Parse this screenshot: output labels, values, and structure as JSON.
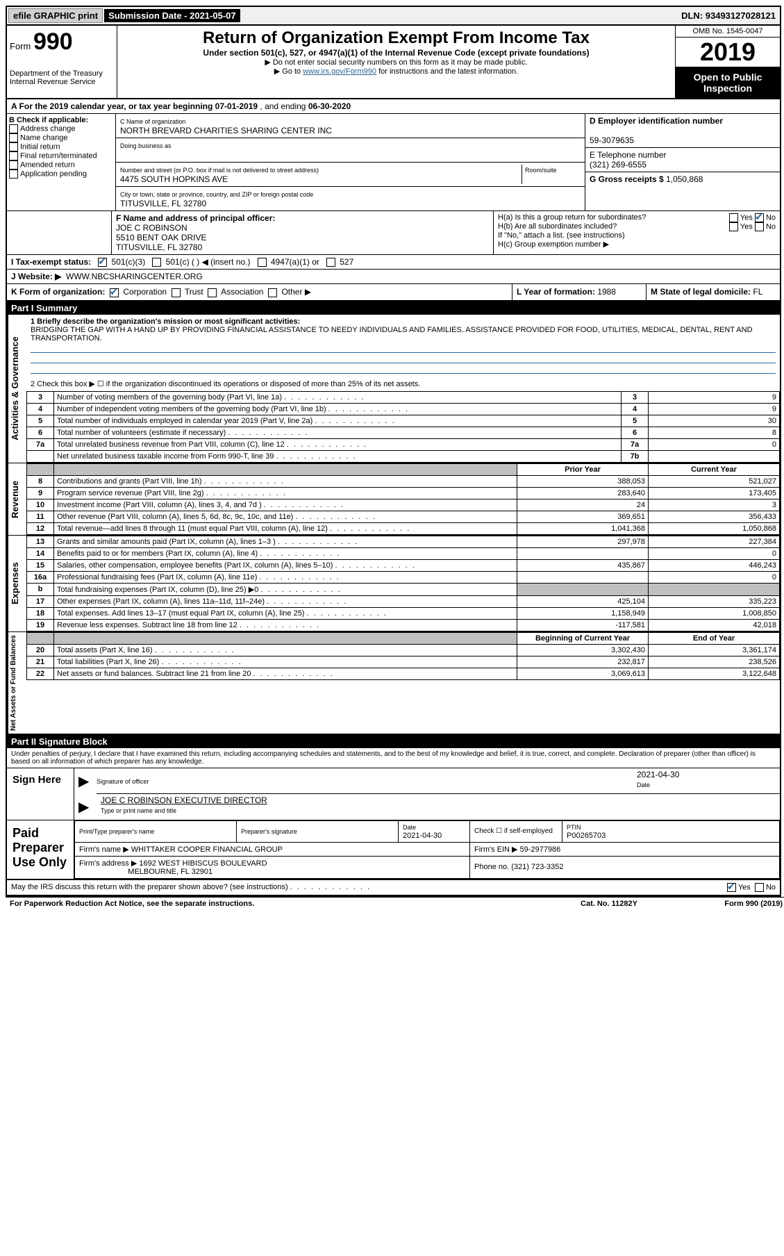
{
  "topbar": {
    "efile": "efile GRAPHIC print",
    "submission_label": "Submission Date",
    "submission_date": "2021-05-07",
    "dln_label": "DLN:",
    "dln": "93493127028121"
  },
  "header": {
    "form_label": "Form",
    "form_number": "990",
    "dept1": "Department of the Treasury",
    "dept2": "Internal Revenue Service",
    "title": "Return of Organization Exempt From Income Tax",
    "subtitle": "Under section 501(c), 527, or 4947(a)(1) of the Internal Revenue Code (except private foundations)",
    "note1": "▶ Do not enter social security numbers on this form as it may be made public.",
    "note2_pre": "▶ Go to ",
    "note2_link": "www.irs.gov/Form990",
    "note2_post": " for instructions and the latest information.",
    "omb": "OMB No. 1545-0047",
    "year": "2019",
    "open_public": "Open to Public Inspection"
  },
  "sectionA": {
    "text_pre": "A For the 2019 calendar year, or tax year beginning ",
    "begin": "07-01-2019",
    "mid": " , and ending ",
    "end": "06-30-2020"
  },
  "boxB": {
    "label": "B Check if applicable:",
    "items": [
      "Address change",
      "Name change",
      "Initial return",
      "Final return/terminated",
      "Amended return",
      "Application pending"
    ]
  },
  "boxC": {
    "name_label": "C Name of organization",
    "name": "NORTH BREVARD CHARITIES SHARING CENTER INC",
    "dba_label": "Doing business as",
    "dba": "",
    "street_label": "Number and street (or P.O. box if mail is not delivered to street address)",
    "room_label": "Room/suite",
    "street": "4475 SOUTH HOPKINS AVE",
    "city_label": "City or town, state or province, country, and ZIP or foreign postal code",
    "city": "TITUSVILLE, FL  32780"
  },
  "boxD": {
    "label": "D Employer identification number",
    "ein": "59-3079635"
  },
  "boxE": {
    "label": "E Telephone number",
    "phone": "(321) 269-6555"
  },
  "boxG": {
    "label": "G Gross receipts $",
    "val": "1,050,868"
  },
  "boxF": {
    "label": "F Name and address of principal officer:",
    "name": "JOE C ROBINSON",
    "addr1": "5510 BENT OAK DRIVE",
    "addr2": "TITUSVILLE, FL  32780"
  },
  "boxH": {
    "a_label": "H(a) Is this a group return for subordinates?",
    "a_yes": "Yes",
    "a_no": "No",
    "b_label": "H(b) Are all subordinates included?",
    "b_yes": "Yes",
    "b_no": "No",
    "b_note": "If \"No,\" attach a list. (see instructions)",
    "c_label": "H(c) Group exemption number ▶",
    "c_val": ""
  },
  "boxI": {
    "label": "I Tax-exempt status:",
    "opt1": "501(c)(3)",
    "opt2": "501(c) (   ) ◀ (insert no.)",
    "opt3": "4947(a)(1) or",
    "opt4": "527"
  },
  "boxJ": {
    "label": "J Website: ▶",
    "val": "WWW.NBCSHARINGCENTER.ORG"
  },
  "boxK": {
    "label": "K Form of organization:",
    "opt1": "Corporation",
    "opt2": "Trust",
    "opt3": "Association",
    "opt4": "Other ▶"
  },
  "boxL": {
    "label": "L Year of formation:",
    "val": "1988"
  },
  "boxM": {
    "label": "M State of legal domicile:",
    "val": "FL"
  },
  "part1": {
    "header": "Part I     Summary",
    "q1_label": "1  Briefly describe the organization's mission or most significant activities:",
    "q1_text": "BRIDGING THE GAP WITH A HAND UP BY PROVIDING FINANCIAL ASSISTANCE TO NEEDY INDIVIDUALS AND FAMILIES. ASSISTANCE PROVIDED FOR FOOD, UTILITIES, MEDICAL, DENTAL, RENT AND TRANSPORTATION.",
    "q2": "2   Check this box ▶ ☐ if the organization discontinued its operations or disposed of more than 25% of its net assets.",
    "vert_act": "Activities & Governance",
    "vert_rev": "Revenue",
    "vert_exp": "Expenses",
    "vert_net": "Net Assets or Fund Balances",
    "rows_gov": [
      {
        "n": "3",
        "d": "Number of voting members of the governing body (Part VI, line 1a)",
        "box": "3",
        "v": "9"
      },
      {
        "n": "4",
        "d": "Number of independent voting members of the governing body (Part VI, line 1b)",
        "box": "4",
        "v": "9"
      },
      {
        "n": "5",
        "d": "Total number of individuals employed in calendar year 2019 (Part V, line 2a)",
        "box": "5",
        "v": "30"
      },
      {
        "n": "6",
        "d": "Total number of volunteers (estimate if necessary)",
        "box": "6",
        "v": "8"
      },
      {
        "n": "7a",
        "d": "Total unrelated business revenue from Part VIII, column (C), line 12",
        "box": "7a",
        "v": "0"
      },
      {
        "n": "",
        "d": "Net unrelated business taxable income from Form 990-T, line 39",
        "box": "7b",
        "v": ""
      }
    ],
    "col_prior": "Prior Year",
    "col_current": "Current Year",
    "rows_rev": [
      {
        "n": "8",
        "d": "Contributions and grants (Part VIII, line 1h)",
        "p": "388,053",
        "c": "521,027"
      },
      {
        "n": "9",
        "d": "Program service revenue (Part VIII, line 2g)",
        "p": "283,640",
        "c": "173,405"
      },
      {
        "n": "10",
        "d": "Investment income (Part VIII, column (A), lines 3, 4, and 7d )",
        "p": "24",
        "c": "3"
      },
      {
        "n": "11",
        "d": "Other revenue (Part VIII, column (A), lines 5, 6d, 8c, 9c, 10c, and 11e)",
        "p": "369,651",
        "c": "356,433"
      },
      {
        "n": "12",
        "d": "Total revenue—add lines 8 through 11 (must equal Part VIII, column (A), line 12)",
        "p": "1,041,368",
        "c": "1,050,868"
      }
    ],
    "rows_exp": [
      {
        "n": "13",
        "d": "Grants and similar amounts paid (Part IX, column (A), lines 1–3 )",
        "p": "297,978",
        "c": "227,384"
      },
      {
        "n": "14",
        "d": "Benefits paid to or for members (Part IX, column (A), line 4)",
        "p": "",
        "c": "0"
      },
      {
        "n": "15",
        "d": "Salaries, other compensation, employee benefits (Part IX, column (A), lines 5–10)",
        "p": "435,867",
        "c": "446,243"
      },
      {
        "n": "16a",
        "d": "Professional fundraising fees (Part IX, column (A), line 11e)",
        "p": "",
        "c": "0"
      },
      {
        "n": "b",
        "d": "Total fundraising expenses (Part IX, column (D), line 25) ▶0",
        "p": "GREY",
        "c": "GREY"
      },
      {
        "n": "17",
        "d": "Other expenses (Part IX, column (A), lines 11a–11d, 11f–24e)",
        "p": "425,104",
        "c": "335,223"
      },
      {
        "n": "18",
        "d": "Total expenses. Add lines 13–17 (must equal Part IX, column (A), line 25)",
        "p": "1,158,949",
        "c": "1,008,850"
      },
      {
        "n": "19",
        "d": "Revenue less expenses. Subtract line 18 from line 12",
        "p": "-117,581",
        "c": "42,018"
      }
    ],
    "col_boy": "Beginning of Current Year",
    "col_eoy": "End of Year",
    "rows_net": [
      {
        "n": "20",
        "d": "Total assets (Part X, line 16)",
        "p": "3,302,430",
        "c": "3,361,174"
      },
      {
        "n": "21",
        "d": "Total liabilities (Part X, line 26)",
        "p": "232,817",
        "c": "238,526"
      },
      {
        "n": "22",
        "d": "Net assets or fund balances. Subtract line 21 from line 20",
        "p": "3,069,613",
        "c": "3,122,648"
      }
    ]
  },
  "part2": {
    "header": "Part II     Signature Block",
    "penalty": "Under penalties of perjury, I declare that I have examined this return, including accompanying schedules and statements, and to the best of my knowledge and belief, it is true, correct, and complete. Declaration of preparer (other than officer) is based on all information of which preparer has any knowledge.",
    "sign_here": "Sign Here",
    "sig_officer_label": "Signature of officer",
    "sig_date_label": "Date",
    "sig_date": "2021-04-30",
    "sig_name": "JOE C ROBINSON  EXECUTIVE DIRECTOR",
    "sig_name_label": "Type or print name and title",
    "paid_prep": "Paid Preparer Use Only",
    "prep_name_label": "Print/Type preparer's name",
    "prep_name": "",
    "prep_sig_label": "Preparer's signature",
    "prep_date_label": "Date",
    "prep_date": "2021-04-30",
    "prep_check_label": "Check ☐ if self-employed",
    "ptin_label": "PTIN",
    "ptin": "P00265703",
    "firm_name_label": "Firm's name    ▶",
    "firm_name": "WHITTAKER COOPER FINANCIAL GROUP",
    "firm_ein_label": "Firm's EIN ▶",
    "firm_ein": "59-2977986",
    "firm_addr_label": "Firm's address ▶",
    "firm_addr1": "1692 WEST HIBISCUS BOULEVARD",
    "firm_addr2": "MELBOURNE, FL  32901",
    "firm_phone_label": "Phone no.",
    "firm_phone": "(321) 723-3352",
    "may_irs": "May the IRS discuss this return with the preparer shown above? (see instructions)",
    "yes": "Yes",
    "no": "No"
  },
  "footer": {
    "paperwork": "For Paperwork Reduction Act Notice, see the separate instructions.",
    "cat": "Cat. No. 11282Y",
    "form": "Form 990 (2019)"
  }
}
